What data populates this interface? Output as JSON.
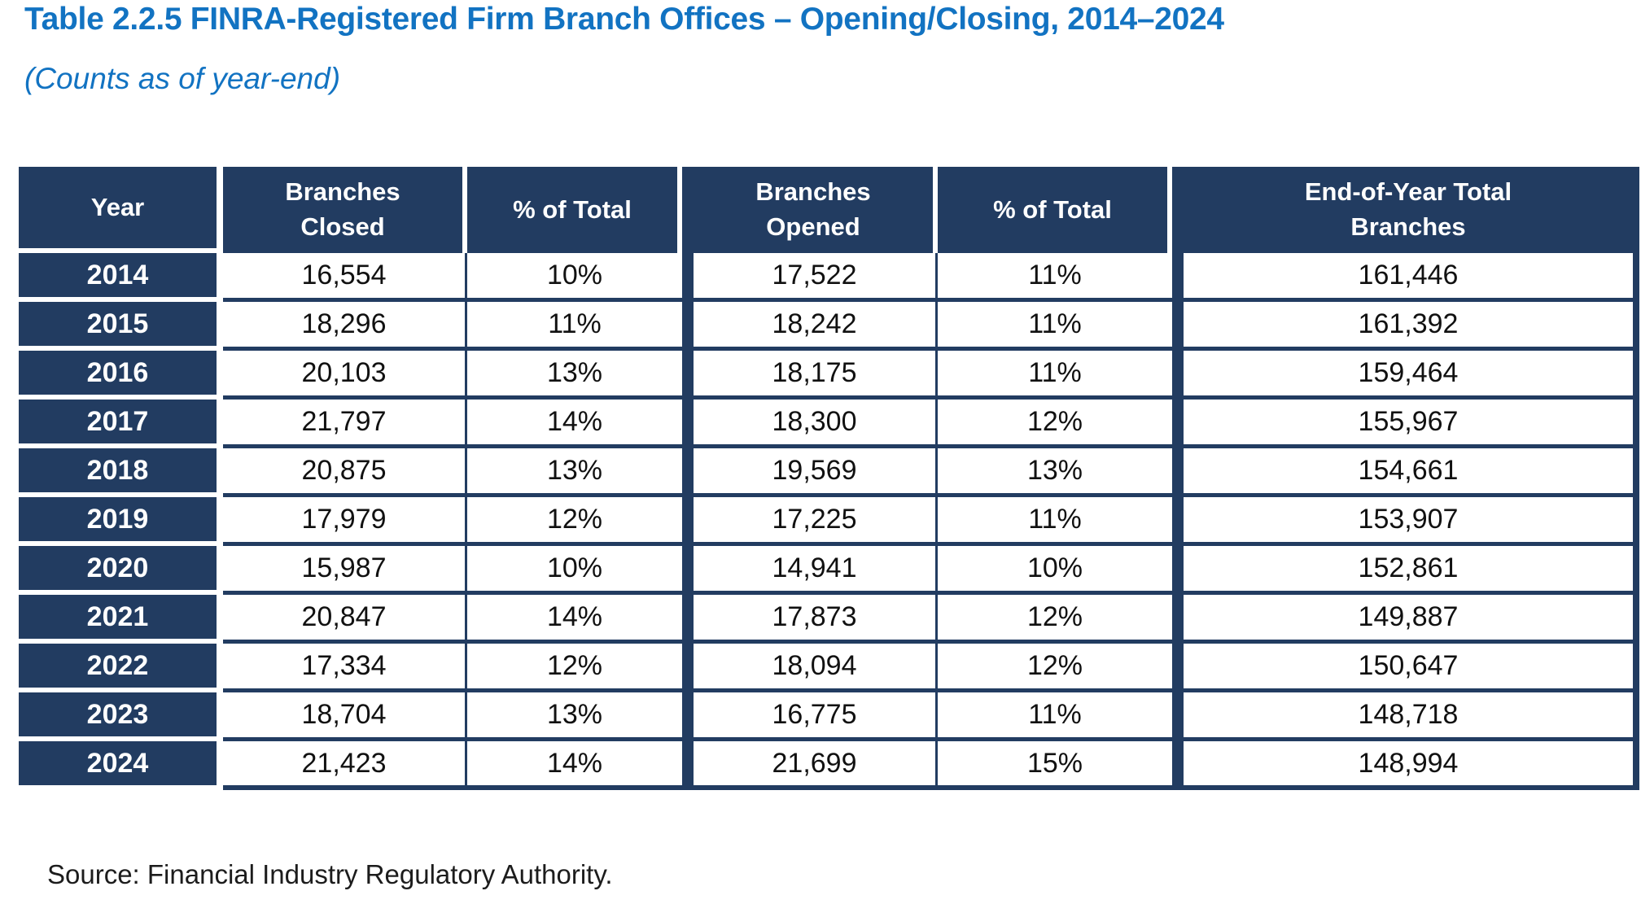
{
  "page": {
    "title": "Table 2.2.5 FINRA-Registered Firm Branch Offices – Opening/Closing, 2014–2024",
    "subtitle": "(Counts as of year-end)",
    "source": "Source: Financial Industry Regulatory Authority."
  },
  "colors": {
    "title_blue": "#1273c2",
    "table_navy": "#223c61",
    "header_text": "#ffffff",
    "cell_text": "#111111"
  },
  "table": {
    "headers": [
      "Year",
      "Branches\nClosed",
      "% of Total",
      "Branches\nOpened",
      "% of Total",
      "End-of-Year Total\nBranches"
    ],
    "rows": [
      [
        "2014",
        "16,554",
        "10%",
        "17,522",
        "11%",
        "161,446"
      ],
      [
        "2015",
        "18,296",
        "11%",
        "18,242",
        "11%",
        "161,392"
      ],
      [
        "2016",
        "20,103",
        "13%",
        "18,175",
        "11%",
        "159,464"
      ],
      [
        "2017",
        "21,797",
        "14%",
        "18,300",
        "12%",
        "155,967"
      ],
      [
        "2018",
        "20,875",
        "13%",
        "19,569",
        "13%",
        "154,661"
      ],
      [
        "2019",
        "17,979",
        "12%",
        "17,225",
        "11%",
        "153,907"
      ],
      [
        "2020",
        "15,987",
        "10%",
        "14,941",
        "10%",
        "152,861"
      ],
      [
        "2021",
        "20,847",
        "14%",
        "17,873",
        "12%",
        "149,887"
      ],
      [
        "2022",
        "17,334",
        "12%",
        "18,094",
        "12%",
        "150,647"
      ],
      [
        "2023",
        "18,704",
        "13%",
        "16,775",
        "11%",
        "148,718"
      ],
      [
        "2024",
        "21,423",
        "14%",
        "21,699",
        "15%",
        "148,994"
      ]
    ]
  }
}
